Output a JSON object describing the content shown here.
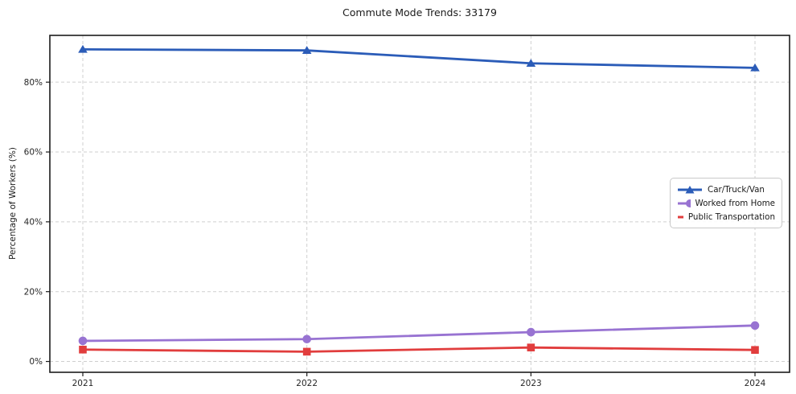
{
  "chart_data": {
    "type": "line",
    "title": "Commute Mode Trends: 33179",
    "xlabel": "",
    "ylabel": "Percentage of Workers (%)",
    "x": [
      "2021",
      "2022",
      "2023",
      "2024"
    ],
    "series": [
      {
        "name": "Car/Truck/Van",
        "values": [
          89.4,
          89.1,
          85.4,
          84.1
        ],
        "color": "#2b5cb8",
        "marker": "triangle"
      },
      {
        "name": "Worked from Home",
        "values": [
          5.9,
          6.4,
          8.4,
          10.3
        ],
        "color": "#9873d2",
        "marker": "circle"
      },
      {
        "name": "Public Transportation",
        "values": [
          3.4,
          2.8,
          4.0,
          3.3
        ],
        "color": "#e13d3d",
        "marker": "square"
      }
    ],
    "yticks": {
      "values": [
        0,
        20,
        40,
        60,
        80
      ],
      "labels": [
        "0%",
        "20%",
        "40%",
        "60%",
        "80%"
      ]
    },
    "ylim": [
      -3.1,
      93.4
    ],
    "grid": true,
    "grid_style": "dashed",
    "grid_color": "#cfcfcf",
    "frame_color": "#1c1c1c",
    "legend_position": "center-right"
  }
}
